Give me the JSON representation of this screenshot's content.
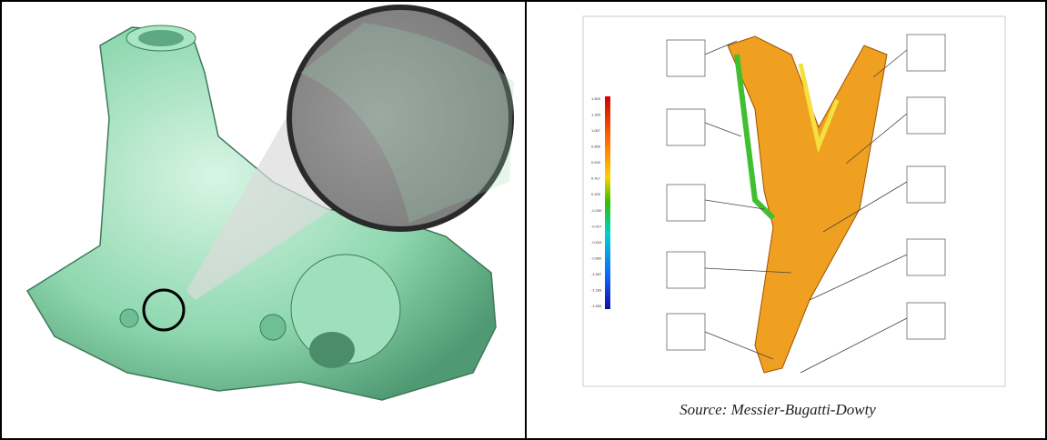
{
  "caption": "Source: Messier-Bugatti-Dowty",
  "scale_labels": [
    "1.500",
    "1.283",
    "1.067",
    "0.850",
    "0.633",
    "0.417",
    "0.200",
    "-0.200",
    "-0.417",
    "-0.633",
    "-0.850",
    "-1.067",
    "-1.283",
    "-1.500"
  ]
}
